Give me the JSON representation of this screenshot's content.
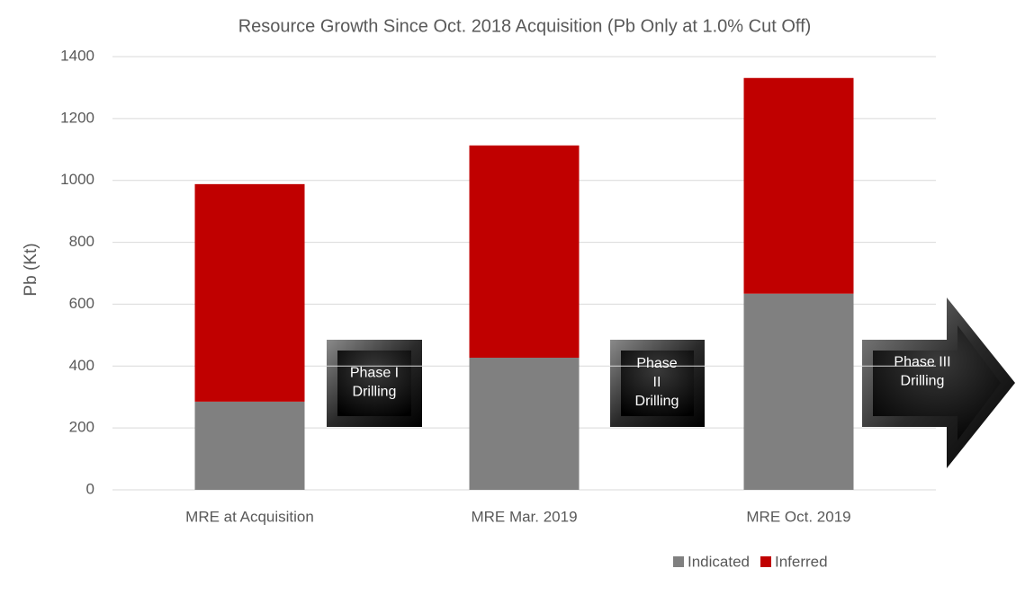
{
  "chart_data": {
    "type": "stacked_bar",
    "title": "Resource Growth Since Oct. 2018 Acquisition (Pb Only at 1.0% Cut Off)",
    "y_label": "Pb (Kt)",
    "categories": [
      "MRE at Acquisition",
      "MRE Mar. 2019",
      "MRE Oct. 2019"
    ],
    "series": [
      {
        "name": "Indicated",
        "color": "#808080",
        "values": [
          285,
          427,
          634
        ]
      },
      {
        "name": "Inferred",
        "color": "#c00000",
        "values": [
          703,
          686,
          697
        ]
      }
    ],
    "ylim": [
      0,
      1400
    ],
    "yticks": [
      0,
      200,
      400,
      600,
      800,
      1000,
      1200,
      1400
    ],
    "grid": true,
    "legend": "bottom",
    "annotations": [
      [
        "Phase I",
        "Drilling"
      ],
      [
        "Phase",
        "II",
        "Drilling"
      ],
      [
        "Phase III",
        "Drilling"
      ]
    ]
  }
}
